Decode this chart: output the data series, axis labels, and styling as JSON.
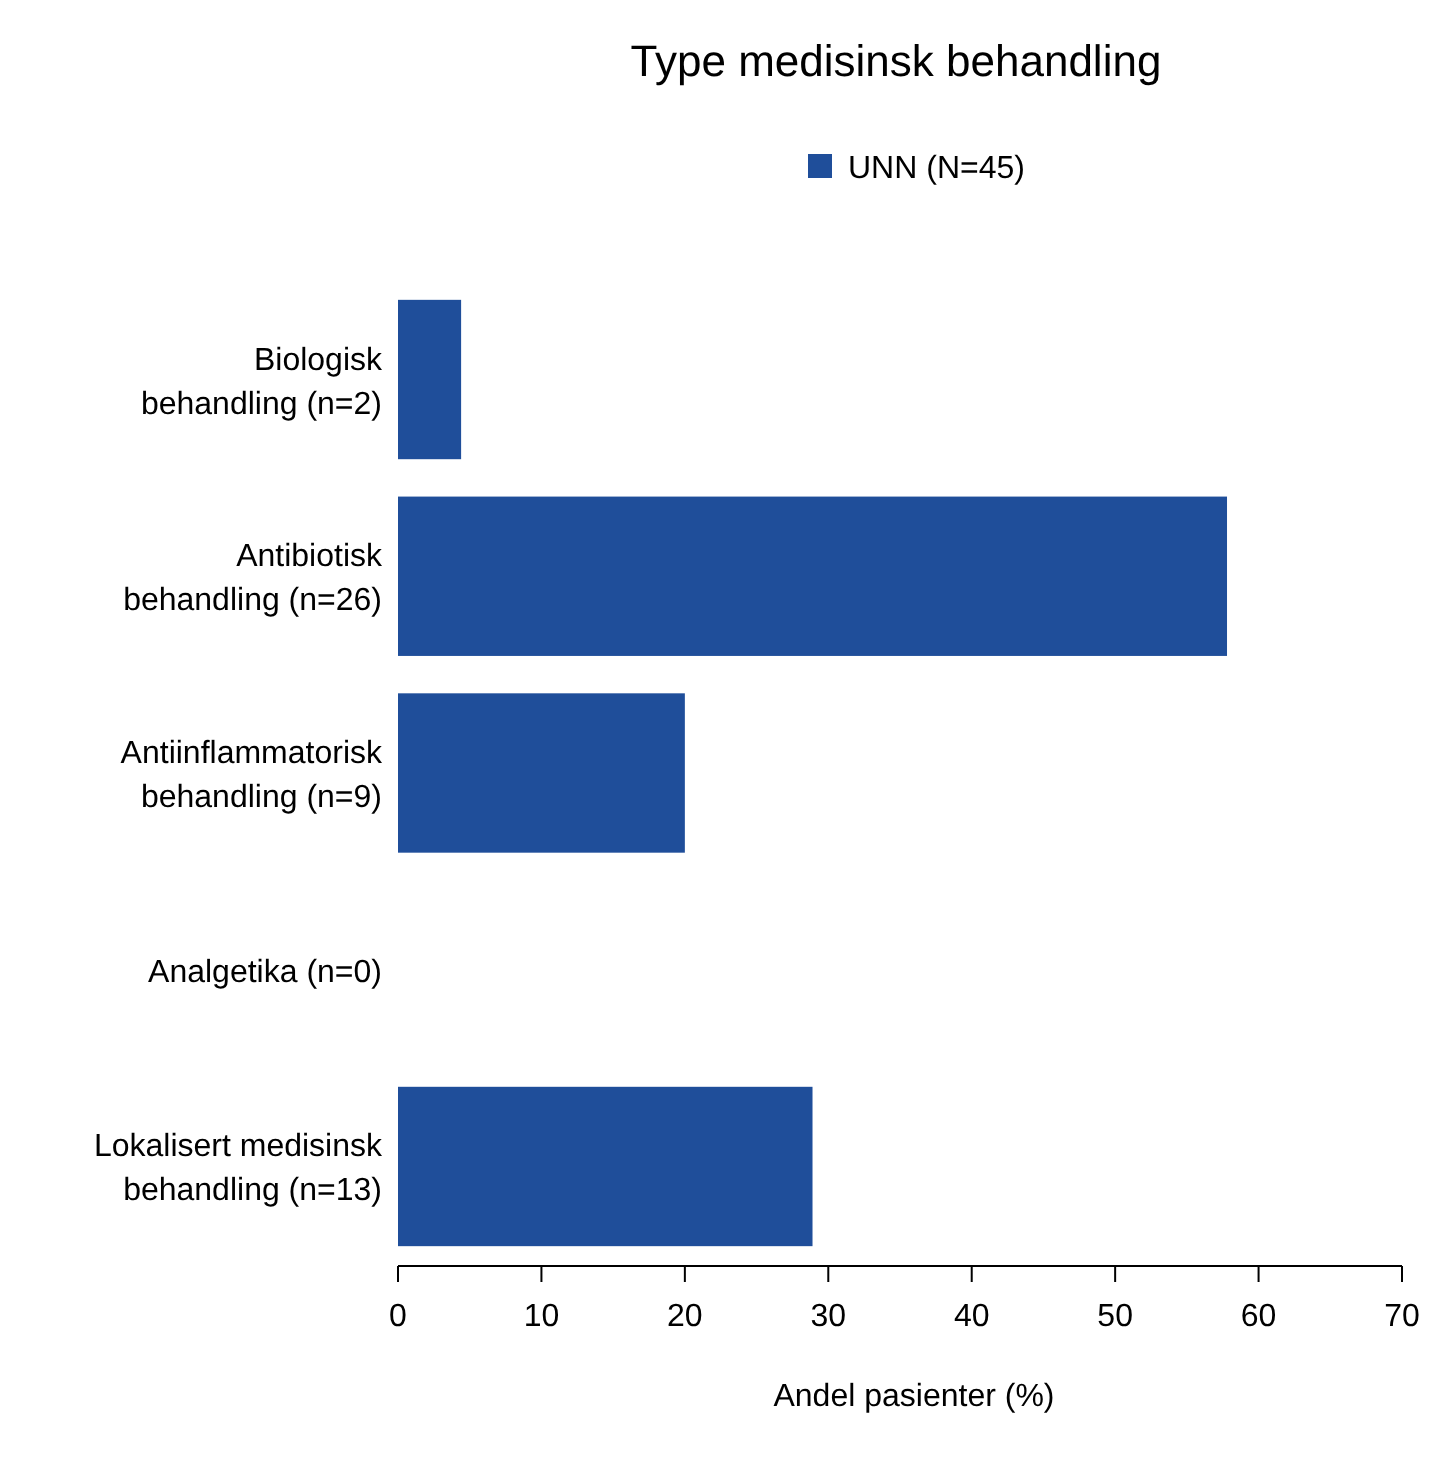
{
  "chart_data": {
    "type": "bar",
    "orientation": "horizontal",
    "title": "Type medisinsk behandling",
    "xlabel": "Andel pasienter (%)",
    "categories": [
      "Biologisk\nbehandling (n=2)",
      "Antibiotisk\nbehandling (n=26)",
      "Antiinflammatorisk\nbehandling (n=9)",
      "Analgetika (n=0)",
      "Lokalisert medisinsk\nbehandling (n=13)"
    ],
    "series": [
      {
        "name": "UNN (N=45)",
        "color": "#1f4e9a",
        "values": [
          4.4,
          57.8,
          20,
          0,
          28.9
        ]
      }
    ],
    "xlim": [
      0,
      70
    ],
    "xticks": [
      0,
      10,
      20,
      30,
      40,
      50,
      60,
      70
    ],
    "legend": "top",
    "grid": false
  }
}
